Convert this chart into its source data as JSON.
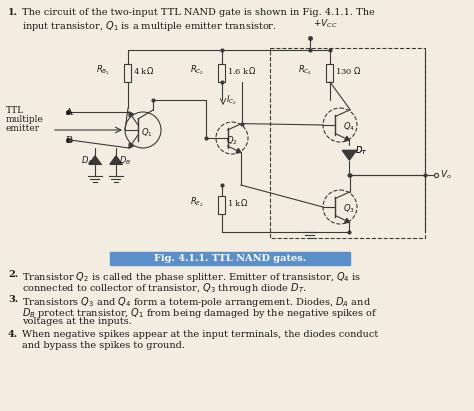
{
  "background_color": "#f2ede0",
  "title_text": "Fig. 4.1.1. TTL NAND gates.",
  "point1_line1": "The circuit of the two-input TTL NAND gate is shown in Fig. 4.1.1. The",
  "point1_line2": "input transistor, $Q_1$ is a multiple emitter transistor.",
  "point2_line1": "Transistor $Q_2$ is called the phase splitter. Emitter of transistor, $Q_4$ is",
  "point2_line2": "connected to collector of transistor, $Q_3$ through diode $D_T$.",
  "point3_line1": "Transistors $Q_3$ and $Q_4$ form a totem-pole arrangement. Diodes, $D_A$ and",
  "point3_line2": "$D_B$ protect transistor, $Q_1$ from being damaged by the negative spikes of",
  "point3_line3": "voltages at the inputs.",
  "point4_line1": "When negative spikes appear at the input terminals, the diodes conduct",
  "point4_line2": "and bypass the spikes to ground.",
  "text_color": "#1a1a1a",
  "fig_caption_bg": "#5b8fc9",
  "fig_caption_color": "#ffffff",
  "wire_color": "#3a3a3a",
  "dashed_color": "#4a4a4a"
}
